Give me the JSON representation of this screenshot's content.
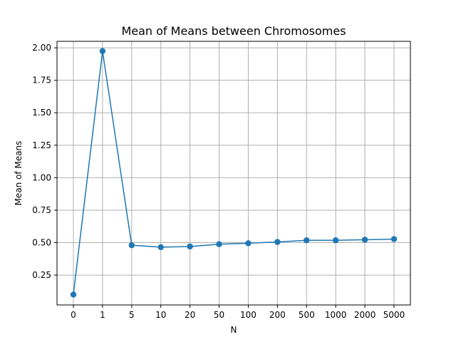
{
  "chart_data": {
    "type": "line",
    "title": "Mean of Means between Chromosomes",
    "xlabel": "N",
    "ylabel": "Mean of Means",
    "categories": [
      "0",
      "1",
      "5",
      "10",
      "20",
      "50",
      "100",
      "200",
      "500",
      "1000",
      "2000",
      "5000"
    ],
    "series": [
      {
        "values": [
          0.1,
          1.975,
          0.48,
          0.465,
          0.47,
          0.488,
          0.495,
          0.505,
          0.518,
          0.518,
          0.522,
          0.527
        ],
        "color": "#1f77b4",
        "marker": "circle"
      }
    ],
    "ylim": [
      0.02,
      2.05
    ],
    "yticks": [
      0.25,
      0.5,
      0.75,
      1.0,
      1.25,
      1.5,
      1.75,
      2.0
    ],
    "ytick_labels": [
      "0.25",
      "0.50",
      "0.75",
      "1.00",
      "1.25",
      "1.50",
      "1.75",
      "2.00"
    ],
    "grid": true,
    "legend": "none"
  }
}
